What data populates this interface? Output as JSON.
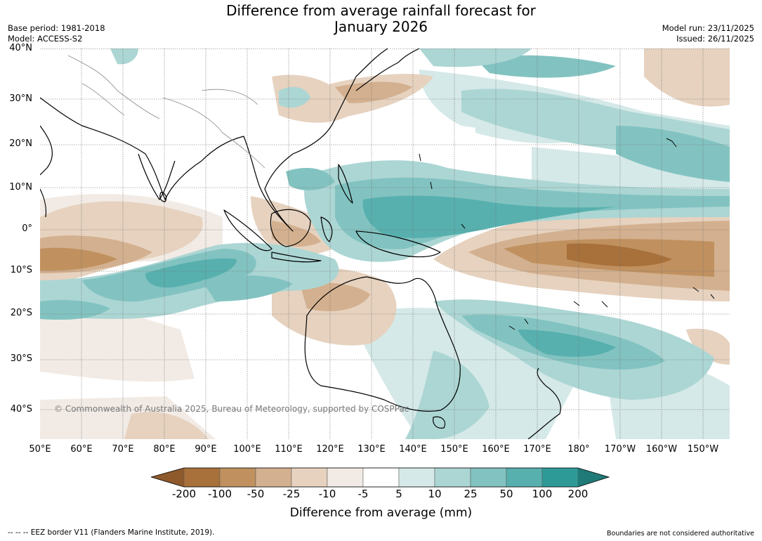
{
  "title": {
    "line1": "Difference from average rainfall forecast for",
    "line2": "January 2026"
  },
  "meta": {
    "base_period": "Base period: 1981-2018",
    "model": "Model: ACCESS-S2",
    "model_run": "Model run: 23/11/2025",
    "issued": "Issued: 26/11/2025"
  },
  "latitude_labels": [
    "40°N",
    "30°N",
    "20°N",
    "10°N",
    "0°",
    "10°S",
    "20°S",
    "30°S",
    "40°S"
  ],
  "longitude_labels": [
    "50°E",
    "60°E",
    "70°E",
    "80°E",
    "90°E",
    "100°E",
    "110°E",
    "120°E",
    "130°E",
    "140°E",
    "150°E",
    "160°E",
    "170°E",
    "180°",
    "170°W",
    "160°W",
    "150°W"
  ],
  "copyright": "© Commonwealth of Australia 2025, Bureau of Meteorology, supported by COSPPac",
  "colorbar": {
    "ticks": [
      "-200",
      "-100",
      "-50",
      "-25",
      "-10",
      "-5",
      "5",
      "10",
      "25",
      "50",
      "100",
      "200"
    ],
    "label": "Difference from average (mm)",
    "colors": [
      "#a8703a",
      "#c0915f",
      "#d3b08f",
      "#e6d2bf",
      "#f2ebe5",
      "#ffffff",
      "#d5e9e8",
      "#acd6d4",
      "#82c3c1",
      "#57b0ae",
      "#2e9a98"
    ],
    "under_color": "#8e5a2c",
    "over_color": "#1f7a78"
  },
  "footer": {
    "eez_note": "--  --  -- EEZ border V11 (Flanders Marine Institute, 2019).",
    "disclaimer": "Boundaries are not considered authoritative"
  }
}
